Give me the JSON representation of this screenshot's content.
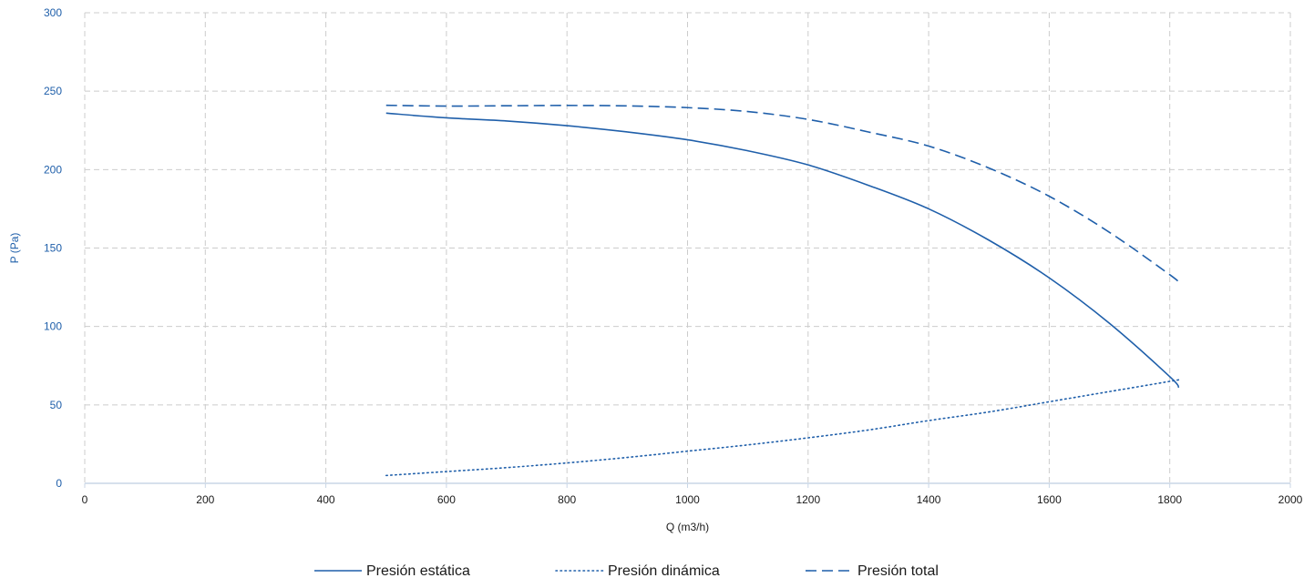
{
  "chart_data": {
    "type": "line",
    "title": "",
    "xlabel": "Q (m3/h)",
    "ylabel": "P (Pa)",
    "xlim": [
      0,
      2000
    ],
    "ylim": [
      0,
      300
    ],
    "x_ticks": [
      0,
      200,
      400,
      600,
      800,
      1000,
      1200,
      1400,
      1600,
      1800,
      2000
    ],
    "y_ticks": [
      0,
      50,
      100,
      150,
      200,
      250,
      300
    ],
    "grid": true,
    "legend_position": "bottom-center",
    "colors": {
      "series": "#1f5faa",
      "grid": "#cccccc",
      "x_axis": "#c9d6e6",
      "y_tick_label": "#1f5faa",
      "text": "#1a1a1a"
    },
    "series": [
      {
        "name": "Presión estática",
        "style": "solid",
        "x": [
          500,
          600,
          700,
          800,
          900,
          1000,
          1100,
          1200,
          1300,
          1400,
          1500,
          1600,
          1700,
          1800,
          1815
        ],
        "y": [
          236,
          233,
          231,
          228,
          224,
          219,
          212,
          203,
          190,
          175,
          155,
          131,
          102,
          68,
          61
        ]
      },
      {
        "name": "Presión dinámica",
        "style": "dotted",
        "x": [
          500,
          600,
          700,
          800,
          900,
          1000,
          1100,
          1200,
          1300,
          1400,
          1500,
          1600,
          1700,
          1800,
          1815
        ],
        "y": [
          5,
          7.5,
          10,
          13,
          16.5,
          20.5,
          24.5,
          29,
          34,
          40,
          45.5,
          52,
          58.5,
          65,
          66
        ]
      },
      {
        "name": "Presión total",
        "style": "dashed",
        "x": [
          500,
          600,
          700,
          800,
          900,
          1000,
          1100,
          1200,
          1300,
          1400,
          1500,
          1600,
          1700,
          1800,
          1815
        ],
        "y": [
          241,
          240.5,
          240.7,
          240.9,
          240.6,
          239.5,
          237,
          232,
          224,
          215,
          201,
          183,
          160,
          133,
          128
        ]
      }
    ]
  }
}
